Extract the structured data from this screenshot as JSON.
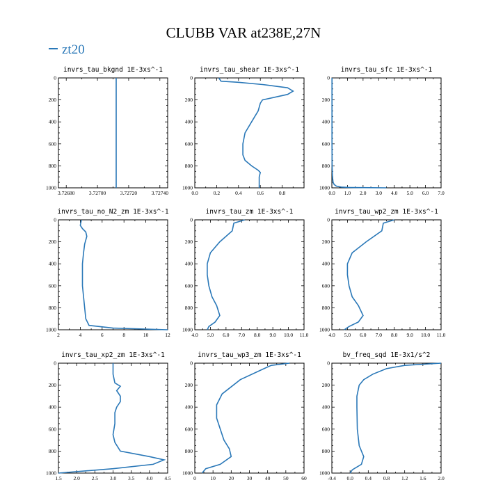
{
  "figure": {
    "title": "CLUBB VAR at238E,27N",
    "legend": {
      "label": "zt20",
      "color": "#2a78b8"
    }
  },
  "chart_data": [
    {
      "type": "line",
      "title": "invrs_tau_bkgnd   1E-3xs^-1",
      "xlim": [
        3.72675,
        3.72745
      ],
      "ylim": [
        1000,
        0
      ],
      "xticks": [
        "3.72680",
        "3.72700",
        "3.72720",
        "3.72740"
      ],
      "xtick_values": [
        3.7268,
        3.727,
        3.7272,
        3.7274
      ],
      "yticks": [
        0,
        200,
        400,
        600,
        800,
        1000
      ],
      "series": [
        {
          "name": "zt20",
          "x": [
            3.72712,
            3.72712
          ],
          "y": [
            0,
            1000
          ]
        }
      ]
    },
    {
      "type": "line",
      "title": "invrs_tau_shear   1E-3xs^-1",
      "xlim": [
        0.0,
        1.0
      ],
      "ylim": [
        1000,
        0
      ],
      "xticks": [
        "0.0",
        "0.2",
        "0.4",
        "0.6",
        "0.8"
      ],
      "xtick_values": [
        0.0,
        0.2,
        0.4,
        0.6,
        0.8
      ],
      "yticks": [
        0,
        200,
        400,
        600,
        800,
        1000
      ],
      "series": [
        {
          "name": "zt20",
          "x": [
            0.22,
            0.24,
            0.4,
            0.62,
            0.85,
            0.9,
            0.85,
            0.62,
            0.6,
            0.58,
            0.52,
            0.46,
            0.44,
            0.44,
            0.46,
            0.52,
            0.58,
            0.6,
            0.59,
            0.59
          ],
          "y": [
            0,
            30,
            40,
            60,
            90,
            120,
            150,
            200,
            230,
            300,
            400,
            500,
            600,
            700,
            750,
            800,
            840,
            860,
            900,
            1000
          ]
        }
      ]
    },
    {
      "type": "line",
      "title": "invrs_tau_sfc   1E-3xs^-1",
      "xlim": [
        0.0,
        7.0
      ],
      "ylim": [
        1000,
        0
      ],
      "xticks": [
        "0.0",
        "1.0",
        "2.0",
        "3.0",
        "4.0",
        "5.0",
        "6.0",
        "7.0"
      ],
      "xtick_values": [
        0,
        1,
        2,
        3,
        4,
        5,
        6,
        7
      ],
      "yticks": [
        0,
        200,
        400,
        600,
        800,
        1000
      ],
      "series": [
        {
          "name": "zt20",
          "x": [
            0.01,
            0.01,
            0.02,
            0.04,
            0.08,
            0.15,
            0.3,
            0.6,
            1.2,
            3.5
          ],
          "y": [
            0,
            600,
            800,
            900,
            950,
            970,
            985,
            993,
            997,
            1000
          ]
        }
      ]
    },
    {
      "type": "line",
      "title": "invrs_tau_no_N2_zm   1E-3xs^-1",
      "xlim": [
        2,
        12
      ],
      "ylim": [
        1000,
        0
      ],
      "xticks": [
        "2",
        "4",
        "6",
        "8",
        "10",
        "12"
      ],
      "xtick_values": [
        2,
        4,
        6,
        8,
        10,
        12
      ],
      "yticks": [
        0,
        200,
        400,
        600,
        800,
        1000
      ],
      "series": [
        {
          "name": "zt20",
          "x": [
            4.1,
            4.0,
            4.2,
            4.5,
            4.6,
            4.4,
            4.3,
            4.2,
            4.2,
            4.2,
            4.3,
            4.4,
            4.5,
            4.8,
            7.0,
            12.0
          ],
          "y": [
            0,
            50,
            80,
            110,
            150,
            220,
            300,
            400,
            500,
            600,
            700,
            800,
            900,
            960,
            985,
            1000
          ]
        }
      ]
    },
    {
      "type": "line",
      "title": "invrs_tau_zm   1E-3xs^-1",
      "xlim": [
        4.0,
        11.0
      ],
      "ylim": [
        1000,
        0
      ],
      "xticks": [
        "4.0",
        "5.0",
        "6.0",
        "7.0",
        "8.0",
        "9.0",
        "10.0",
        "11.0"
      ],
      "xtick_values": [
        4,
        5,
        6,
        7,
        8,
        9,
        10,
        11
      ],
      "yticks": [
        0,
        200,
        400,
        600,
        800,
        1000
      ],
      "series": [
        {
          "name": "zt20",
          "x": [
            7.2,
            6.5,
            6.4,
            5.6,
            5.0,
            4.8,
            4.8,
            4.9,
            5.1,
            5.4,
            5.6,
            5.3,
            4.9,
            4.8
          ],
          "y": [
            0,
            30,
            100,
            200,
            300,
            400,
            500,
            600,
            700,
            780,
            870,
            930,
            970,
            1000
          ]
        }
      ]
    },
    {
      "type": "line",
      "title": "invrs_tau_wp2_zm   1E-3xs^-1",
      "xlim": [
        4.0,
        11.0
      ],
      "ylim": [
        1000,
        0
      ],
      "xticks": [
        "4.0",
        "5.0",
        "6.0",
        "7.0",
        "8.0",
        "9.0",
        "10.0",
        "11.0"
      ],
      "xtick_values": [
        4,
        5,
        6,
        7,
        8,
        9,
        10,
        11
      ],
      "yticks": [
        0,
        200,
        400,
        600,
        800,
        1000
      ],
      "series": [
        {
          "name": "zt20",
          "x": [
            8.0,
            7.3,
            7.2,
            6.2,
            5.3,
            5.0,
            5.0,
            5.1,
            5.3,
            5.7,
            6.0,
            5.7,
            5.1,
            4.8
          ],
          "y": [
            0,
            30,
            100,
            200,
            300,
            400,
            500,
            600,
            700,
            780,
            870,
            930,
            970,
            1000
          ]
        }
      ]
    },
    {
      "type": "line",
      "title": "invrs_tau_xp2_zm   1E-3xs^-1",
      "xlim": [
        1.5,
        4.5
      ],
      "ylim": [
        1000,
        0
      ],
      "xticks": [
        "1.5",
        "2.0",
        "2.5",
        "3.0",
        "3.5",
        "4.0",
        "4.5"
      ],
      "xtick_values": [
        1.5,
        2.0,
        2.5,
        3.0,
        3.5,
        4.0,
        4.5
      ],
      "yticks": [
        0,
        200,
        400,
        600,
        800,
        1000
      ],
      "series": [
        {
          "name": "zt20",
          "x": [
            3.0,
            3.0,
            3.05,
            3.2,
            3.1,
            3.2,
            3.2,
            3.1,
            3.05,
            3.05,
            3.0,
            3.05,
            3.2,
            4.0,
            4.4,
            4.1,
            3.0,
            1.5
          ],
          "y": [
            0,
            100,
            180,
            210,
            250,
            300,
            350,
            400,
            450,
            550,
            650,
            720,
            800,
            850,
            880,
            920,
            960,
            1000
          ]
        }
      ]
    },
    {
      "type": "line",
      "title": "invrs_tau_wp3_zm   1E-3xs^-1",
      "xlim": [
        0,
        60
      ],
      "ylim": [
        1000,
        0
      ],
      "xticks": [
        "0",
        "10",
        "20",
        "30",
        "40",
        "50",
        "60"
      ],
      "xtick_values": [
        0,
        10,
        20,
        30,
        40,
        50,
        60
      ],
      "yticks": [
        0,
        200,
        400,
        600,
        800,
        1000
      ],
      "series": [
        {
          "name": "zt20",
          "x": [
            52,
            42,
            38,
            25,
            15,
            12,
            12,
            14,
            16,
            19,
            20,
            14,
            6,
            4
          ],
          "y": [
            0,
            20,
            50,
            150,
            280,
            380,
            500,
            600,
            700,
            780,
            850,
            920,
            960,
            1000
          ]
        }
      ]
    },
    {
      "type": "line",
      "title": "bv_freq_sqd   1E-3x1/s^2",
      "xlim": [
        -0.4,
        2.0
      ],
      "ylim": [
        1000,
        0
      ],
      "xticks": [
        "-0.4",
        "0.0",
        "0.4",
        "0.8",
        "1.2",
        "1.6",
        "2.0"
      ],
      "xtick_values": [
        -0.4,
        0.0,
        0.4,
        0.8,
        1.2,
        1.6,
        2.0
      ],
      "yticks": [
        0,
        200,
        400,
        600,
        800,
        1000
      ],
      "series": [
        {
          "name": "zt20",
          "x": [
            2.0,
            1.2,
            0.8,
            0.5,
            0.3,
            0.2,
            0.15,
            0.15,
            0.16,
            0.2,
            0.3,
            0.25,
            0.05,
            0.0
          ],
          "y": [
            0,
            20,
            50,
            100,
            150,
            200,
            300,
            400,
            600,
            750,
            850,
            920,
            970,
            1000
          ]
        }
      ]
    }
  ]
}
